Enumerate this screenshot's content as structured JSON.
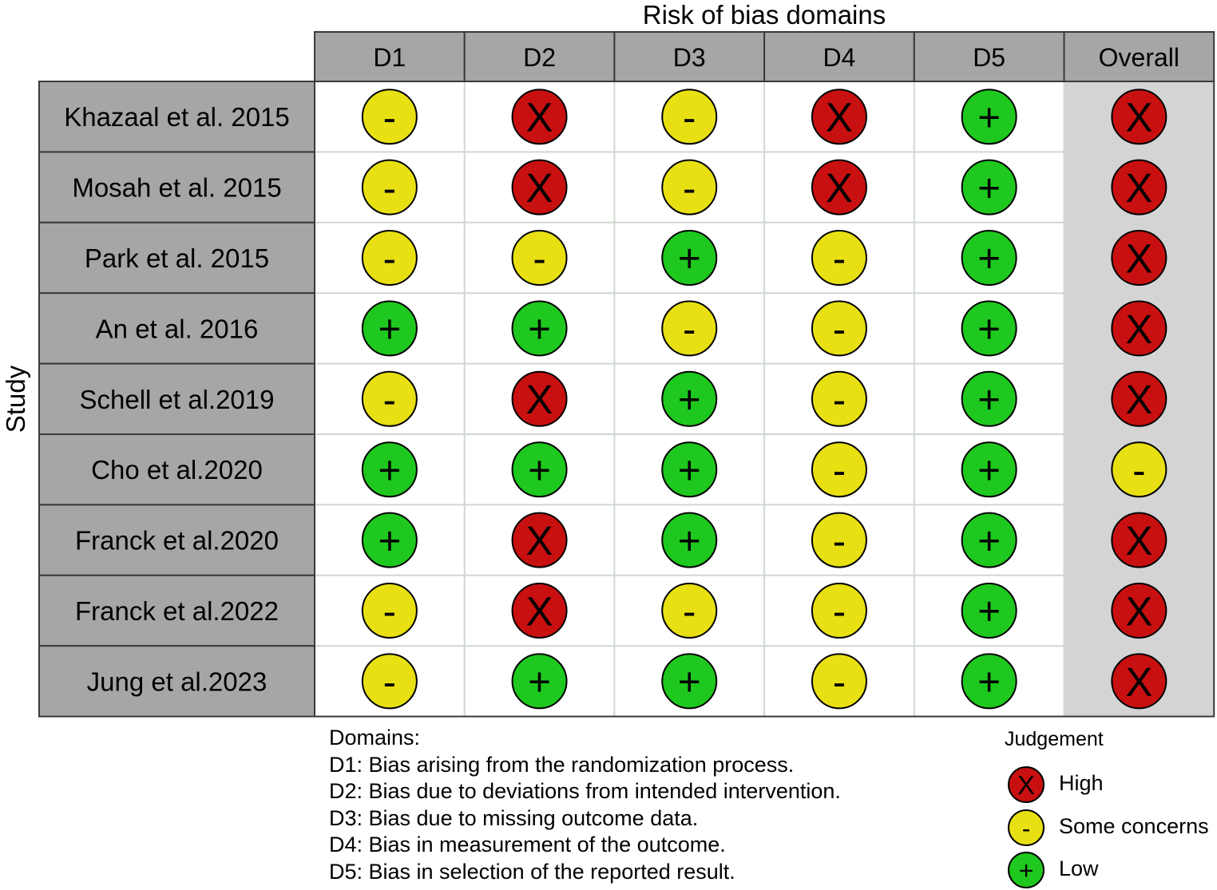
{
  "chart_data": {
    "type": "table",
    "title": "Risk of bias domains",
    "ylabel": "Study",
    "columns": [
      "D1",
      "D2",
      "D3",
      "D4",
      "D5",
      "Overall"
    ],
    "studies": [
      "Khazaal et al. 2015",
      "Mosah et al. 2015",
      "Park et al. 2015",
      "An et al. 2016",
      "Schell et al.2019",
      "Cho et al.2020",
      "Franck et al.2020",
      "Franck et al.2022",
      "Jung et al.2023"
    ],
    "judgements": [
      [
        "some",
        "high",
        "some",
        "high",
        "low",
        "high"
      ],
      [
        "some",
        "high",
        "some",
        "high",
        "low",
        "high"
      ],
      [
        "some",
        "some",
        "low",
        "some",
        "low",
        "high"
      ],
      [
        "low",
        "low",
        "some",
        "some",
        "low",
        "high"
      ],
      [
        "some",
        "high",
        "low",
        "some",
        "low",
        "high"
      ],
      [
        "low",
        "low",
        "low",
        "some",
        "low",
        "some"
      ],
      [
        "low",
        "high",
        "low",
        "some",
        "low",
        "high"
      ],
      [
        "some",
        "high",
        "some",
        "some",
        "low",
        "high"
      ],
      [
        "some",
        "low",
        "low",
        "some",
        "low",
        "high"
      ]
    ],
    "symbols": {
      "high": "X",
      "some": "-",
      "low": "+"
    },
    "colors": {
      "high": "#c81010",
      "some": "#e8e012",
      "low": "#1ec81e",
      "header_fill": "#a6a6a6",
      "overall_fill": "#d4d4d4"
    },
    "domains_legend": {
      "title": "Domains:",
      "items": [
        "D1: Bias arising from the randomization process.",
        "D2: Bias due to deviations from intended intervention.",
        "D3: Bias due to missing outcome data.",
        "D4: Bias in measurement of the outcome.",
        "D5: Bias in selection of the reported result."
      ]
    },
    "judgement_legend": {
      "title": "Judgement",
      "items": [
        {
          "key": "high",
          "label": "High"
        },
        {
          "key": "some",
          "label": "Some concerns"
        },
        {
          "key": "low",
          "label": "Low"
        }
      ]
    }
  }
}
